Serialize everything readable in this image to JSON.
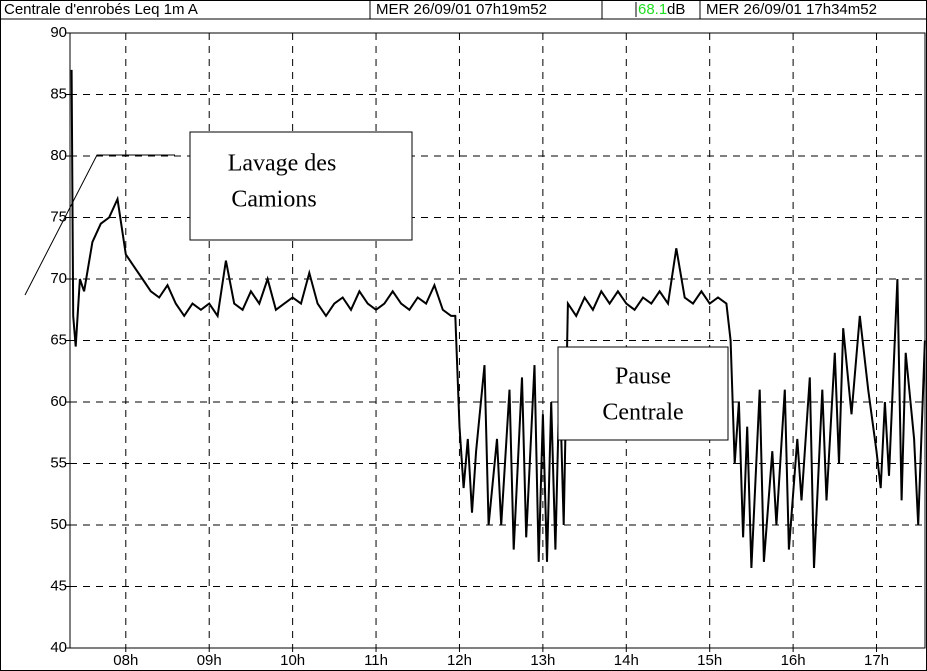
{
  "chart_data": {
    "type": "line",
    "header": {
      "title": "Centrale d'enrobés  Leq 1m  A",
      "start": "MER 26/09/01 07h19m52",
      "current_value": "68.1",
      "current_value_color": "#22dd22",
      "unit": "dB",
      "end": "MER 26/09/01 17h34m52"
    },
    "annotations": [
      {
        "lines": [
          "Lavage des",
          "Camions"
        ]
      },
      {
        "lines": [
          "Pause",
          "Centrale"
        ]
      }
    ],
    "xlim": [
      7.3311,
      17.5811
    ],
    "ylim": [
      40,
      90
    ],
    "xticks": [
      {
        "value": 8,
        "label": "08h"
      },
      {
        "value": 9,
        "label": "09h"
      },
      {
        "value": 10,
        "label": "10h"
      },
      {
        "value": 11,
        "label": "11h"
      },
      {
        "value": 12,
        "label": "12h"
      },
      {
        "value": 13,
        "label": "13h"
      },
      {
        "value": 14,
        "label": "14h"
      },
      {
        "value": 15,
        "label": "15h"
      },
      {
        "value": 16,
        "label": "16h"
      },
      {
        "value": 17,
        "label": "17h"
      }
    ],
    "yticks": [
      40,
      45,
      50,
      55,
      60,
      65,
      70,
      75,
      80,
      85,
      90
    ],
    "grid": true,
    "x": [
      7.35,
      7.37,
      7.4,
      7.45,
      7.5,
      7.6,
      7.7,
      7.8,
      7.9,
      8.0,
      8.1,
      8.2,
      8.3,
      8.4,
      8.5,
      8.6,
      8.7,
      8.8,
      8.9,
      9.0,
      9.1,
      9.2,
      9.3,
      9.4,
      9.5,
      9.6,
      9.7,
      9.8,
      9.9,
      10.0,
      10.1,
      10.2,
      10.3,
      10.4,
      10.5,
      10.6,
      10.7,
      10.8,
      10.9,
      11.0,
      11.1,
      11.2,
      11.3,
      11.4,
      11.5,
      11.6,
      11.7,
      11.8,
      11.9,
      11.95,
      12.0,
      12.05,
      12.1,
      12.15,
      12.2,
      12.3,
      12.35,
      12.45,
      12.5,
      12.6,
      12.65,
      12.75,
      12.8,
      12.9,
      12.95,
      13.0,
      13.05,
      13.1,
      13.15,
      13.2,
      13.25,
      13.3,
      13.4,
      13.5,
      13.6,
      13.7,
      13.8,
      13.9,
      14.0,
      14.1,
      14.2,
      14.3,
      14.4,
      14.5,
      14.6,
      14.7,
      14.8,
      14.9,
      15.0,
      15.1,
      15.2,
      15.25,
      15.3,
      15.35,
      15.4,
      15.45,
      15.5,
      15.6,
      15.65,
      15.75,
      15.8,
      15.9,
      15.95,
      16.05,
      16.1,
      16.2,
      16.25,
      16.35,
      16.4,
      16.5,
      16.55,
      16.6,
      16.7,
      16.8,
      16.9,
      17.0,
      17.05,
      17.1,
      17.15,
      17.25,
      17.3,
      17.35,
      17.45,
      17.5,
      17.58
    ],
    "series": [
      {
        "color": "#000000",
        "values": [
          87,
          67,
          64.5,
          70,
          69,
          73,
          74.5,
          75,
          76.5,
          72,
          71,
          70,
          69,
          68.5,
          69.5,
          68,
          67,
          68,
          67.5,
          68,
          67,
          71.5,
          68,
          67.5,
          69,
          68,
          70,
          67.5,
          68,
          68.5,
          68,
          70.5,
          68,
          67,
          68,
          68.5,
          67.5,
          69,
          68,
          67.5,
          68,
          69,
          68,
          67.5,
          68.5,
          68,
          69.5,
          67.5,
          67,
          67,
          58,
          53,
          57,
          51,
          56,
          63,
          50,
          57,
          50,
          61,
          48,
          62,
          49,
          63,
          47,
          59,
          47,
          60,
          48,
          62,
          50,
          68,
          67,
          68.5,
          67.5,
          69,
          68,
          69,
          68,
          67.5,
          68.5,
          68,
          69,
          68,
          72.5,
          68.5,
          68,
          69,
          68,
          68.5,
          68,
          65,
          55,
          60,
          49,
          58,
          46.5,
          61,
          47,
          56,
          50,
          61,
          48,
          57,
          52,
          62,
          46.5,
          61,
          52,
          64,
          55,
          66,
          59,
          67,
          61,
          56,
          53,
          60,
          54,
          70,
          52,
          64,
          57,
          50,
          65
        ]
      }
    ]
  }
}
